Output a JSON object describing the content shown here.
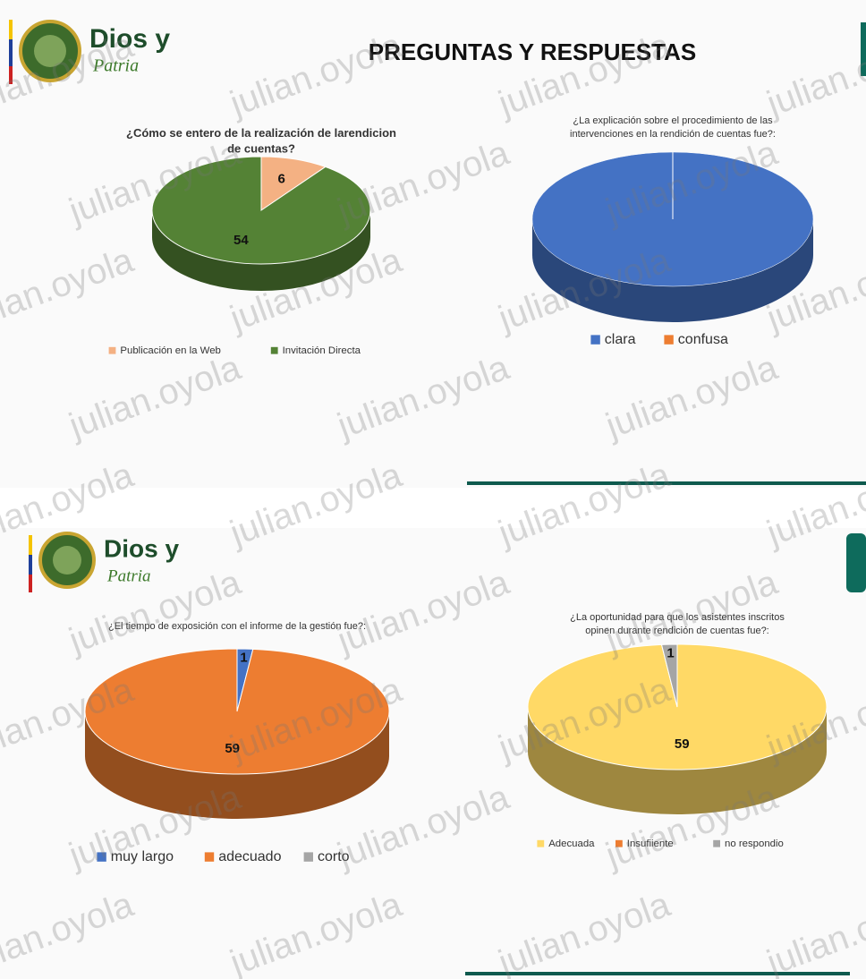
{
  "header": {
    "title": "PREGUNTAS Y RESPUESTAS",
    "logo_text": "Dios y",
    "logo_script": "Patria"
  },
  "watermark": "julian.oyola",
  "chart_data": [
    {
      "type": "pie",
      "title": "¿Cómo se entero de la realización de larendicion de cuentas?",
      "categories": [
        "Publicación en la Web",
        "Invitación Directa"
      ],
      "values": [
        6,
        54
      ],
      "colors": [
        "#f4b183",
        "#548235"
      ],
      "data_labels": true
    },
    {
      "type": "pie",
      "title": "¿La explicación sobre el procedimiento de las intervenciones en la rendición de cuentas fue?:",
      "categories": [
        "clara",
        "confusa"
      ],
      "values": [
        100,
        0
      ],
      "colors": [
        "#4472c4",
        "#ed7d31"
      ],
      "data_labels": false
    },
    {
      "type": "pie",
      "title": "¿El tiempo de exposición con el informe de la gestión fue?:",
      "categories": [
        "muy largo",
        "adecuado",
        "corto"
      ],
      "values": [
        1,
        59,
        0
      ],
      "colors": [
        "#4472c4",
        "#ed7d31",
        "#a5a5a5"
      ],
      "data_labels": true
    },
    {
      "type": "pie",
      "title": "¿La oportunidad para que los asistentes inscritos opinen durante rendición de cuentas fue?:",
      "categories": [
        "Adecuada",
        "Insufiiente",
        "no respondio"
      ],
      "values": [
        59,
        0,
        1
      ],
      "colors": [
        "#ffd966",
        "#ed7d31",
        "#a5a5a5"
      ],
      "data_labels": true
    }
  ]
}
